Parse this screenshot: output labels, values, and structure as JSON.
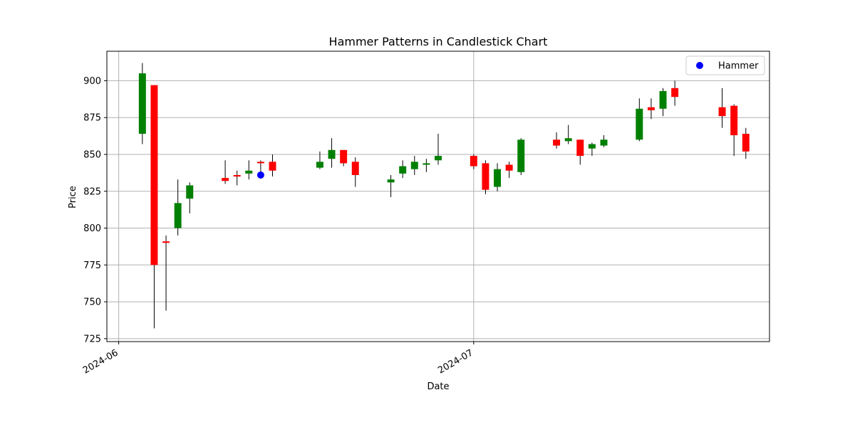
{
  "chart_data": {
    "type": "candlestick",
    "title": "Hammer Patterns in Candlestick Chart",
    "xlabel": "Date",
    "ylabel": "Price",
    "x_range": [
      "2024-05-31",
      "2024-07-26"
    ],
    "ylim": [
      723,
      920
    ],
    "y_ticks": [
      725,
      750,
      775,
      800,
      825,
      850,
      875,
      900
    ],
    "x_ticks": [
      {
        "date": "2024-06-01",
        "label": "2024-06"
      },
      {
        "date": "2024-07-01",
        "label": "2024-07"
      }
    ],
    "grid": true,
    "up_color": "#008000",
    "down_color": "#ff0000",
    "wick_color": "#000000",
    "candles": [
      {
        "date": "2024-06-03",
        "open": 864,
        "high": 912,
        "low": 857,
        "close": 905
      },
      {
        "date": "2024-06-04",
        "open": 897,
        "high": 897,
        "low": 732,
        "close": 775
      },
      {
        "date": "2024-06-05",
        "open": 791,
        "high": 795,
        "low": 744,
        "close": 790
      },
      {
        "date": "2024-06-06",
        "open": 800,
        "high": 833,
        "low": 795,
        "close": 817
      },
      {
        "date": "2024-06-07",
        "open": 820,
        "high": 831,
        "low": 810,
        "close": 829
      },
      {
        "date": "2024-06-10",
        "open": 834,
        "high": 846,
        "low": 830,
        "close": 832
      },
      {
        "date": "2024-06-11",
        "open": 836,
        "high": 839,
        "low": 829,
        "close": 835
      },
      {
        "date": "2024-06-12",
        "open": 837,
        "high": 846,
        "low": 833,
        "close": 839
      },
      {
        "date": "2024-06-13",
        "open": 845,
        "high": 846,
        "low": 836,
        "close": 844
      },
      {
        "date": "2024-06-14",
        "open": 845,
        "high": 850,
        "low": 835,
        "close": 839
      },
      {
        "date": "2024-06-18",
        "open": 841,
        "high": 852,
        "low": 840,
        "close": 845
      },
      {
        "date": "2024-06-19",
        "open": 847,
        "high": 861,
        "low": 841,
        "close": 853
      },
      {
        "date": "2024-06-20",
        "open": 853,
        "high": 853,
        "low": 842,
        "close": 844
      },
      {
        "date": "2024-06-21",
        "open": 845,
        "high": 848,
        "low": 828,
        "close": 836
      },
      {
        "date": "2024-06-24",
        "open": 831,
        "high": 836,
        "low": 821,
        "close": 833
      },
      {
        "date": "2024-06-25",
        "open": 837,
        "high": 846,
        "low": 834,
        "close": 842
      },
      {
        "date": "2024-06-26",
        "open": 840,
        "high": 849,
        "low": 836,
        "close": 845
      },
      {
        "date": "2024-06-27",
        "open": 843,
        "high": 847,
        "low": 838,
        "close": 844
      },
      {
        "date": "2024-06-28",
        "open": 846,
        "high": 864,
        "low": 843,
        "close": 849
      },
      {
        "date": "2024-07-01",
        "open": 849,
        "high": 850,
        "low": 840,
        "close": 842
      },
      {
        "date": "2024-07-02",
        "open": 844,
        "high": 846,
        "low": 823,
        "close": 826
      },
      {
        "date": "2024-07-03",
        "open": 828,
        "high": 844,
        "low": 825,
        "close": 840
      },
      {
        "date": "2024-07-04",
        "open": 843,
        "high": 845,
        "low": 834,
        "close": 839
      },
      {
        "date": "2024-07-05",
        "open": 838,
        "high": 861,
        "low": 836,
        "close": 860
      },
      {
        "date": "2024-07-08",
        "open": 860,
        "high": 865,
        "low": 854,
        "close": 856
      },
      {
        "date": "2024-07-09",
        "open": 859,
        "high": 870,
        "low": 857,
        "close": 861
      },
      {
        "date": "2024-07-10",
        "open": 860,
        "high": 860,
        "low": 843,
        "close": 849
      },
      {
        "date": "2024-07-11",
        "open": 854,
        "high": 858,
        "low": 849,
        "close": 857
      },
      {
        "date": "2024-07-12",
        "open": 856,
        "high": 863,
        "low": 855,
        "close": 860
      },
      {
        "date": "2024-07-15",
        "open": 860,
        "high": 888,
        "low": 859,
        "close": 881
      },
      {
        "date": "2024-07-16",
        "open": 882,
        "high": 888,
        "low": 874,
        "close": 880
      },
      {
        "date": "2024-07-17",
        "open": 881,
        "high": 895,
        "low": 876,
        "close": 893
      },
      {
        "date": "2024-07-18",
        "open": 895,
        "high": 900,
        "low": 883,
        "close": 889
      },
      {
        "date": "2024-07-22",
        "open": 882,
        "high": 895,
        "low": 868,
        "close": 876
      },
      {
        "date": "2024-07-23",
        "open": 883,
        "high": 884,
        "low": 849,
        "close": 863
      },
      {
        "date": "2024-07-24",
        "open": 864,
        "high": 868,
        "low": 847,
        "close": 852
      }
    ],
    "markers": [
      {
        "series": "Hammer",
        "date": "2024-06-13",
        "value": 836,
        "color": "#0000ff"
      }
    ],
    "legend": {
      "position": "top-right",
      "entries": [
        {
          "name": "Hammer",
          "color": "#0000ff"
        }
      ]
    }
  }
}
